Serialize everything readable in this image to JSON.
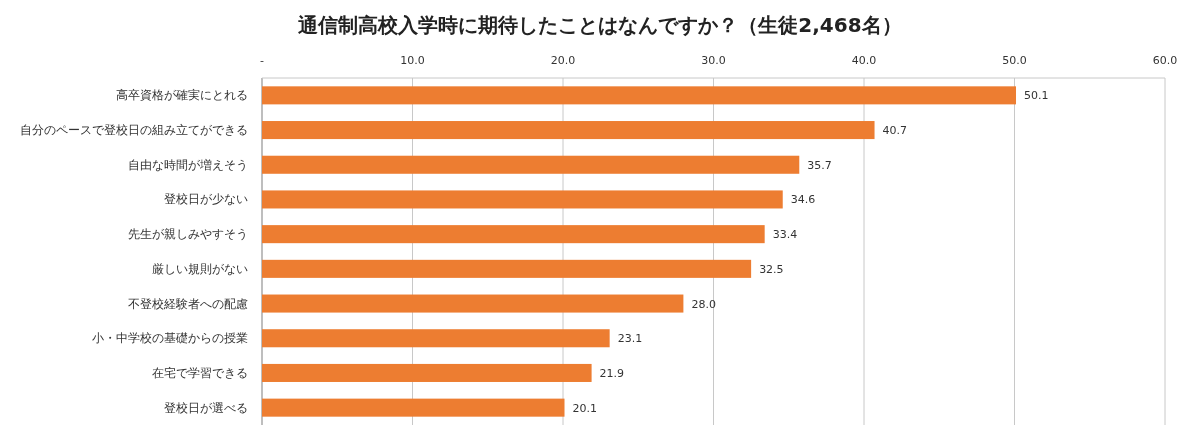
{
  "chart_data": {
    "type": "bar",
    "orientation": "horizontal",
    "title": "通信制高校入学時に期待したことはなんですか？（生徒2,468名）",
    "categories": [
      "高卒資格が確実にとれる",
      "自分のペースで登校日の組み立てができる",
      "自由な時間が増えそう",
      "登校日が少ない",
      "先生が親しみやすそう",
      "厳しい規則がない",
      "不登校経験者への配慮",
      "小・中学校の基礎からの授業",
      "在宅で学習できる",
      "登校日が選べる"
    ],
    "values": [
      50.1,
      40.7,
      35.7,
      34.6,
      33.4,
      32.5,
      28.0,
      23.1,
      21.9,
      20.1
    ],
    "value_labels": [
      "50.1",
      "40.7",
      "35.7",
      "34.6",
      "33.4",
      "32.5",
      "28.0",
      "23.1",
      "21.9",
      "20.1"
    ],
    "color": "#ed7d31",
    "xlim": [
      0,
      60
    ],
    "xticks": [
      {
        "value": 0,
        "label": "-"
      },
      {
        "value": 10,
        "label": "10.0"
      },
      {
        "value": 20,
        "label": "20.0"
      },
      {
        "value": 30,
        "label": "30.0"
      },
      {
        "value": 40,
        "label": "40.0"
      },
      {
        "value": 50,
        "label": "50.0"
      },
      {
        "value": 60,
        "label": "60.0"
      }
    ],
    "grid": "x"
  }
}
